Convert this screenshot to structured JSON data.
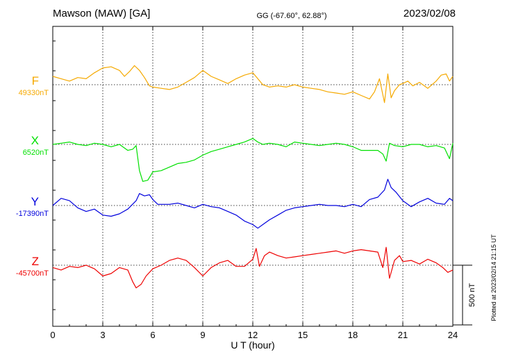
{
  "header": {
    "station": "Mawson (MAW)  [GA]",
    "coords": "GG (-67.60°,  62.88°)",
    "date": "2023/02/08"
  },
  "side_note": "Plotted at 2023/02/14 21:15 UT",
  "scale_label": "500 nT",
  "chart_data": {
    "type": "line",
    "title": "Mawson (MAW)  [GA]",
    "xlabel": "U T (hour)",
    "xlim": [
      0,
      24
    ],
    "xticks": [
      "0",
      "3",
      "6",
      "9",
      "12",
      "15",
      "18",
      "21",
      "24"
    ],
    "grid": true,
    "scale_bar_nT": 500,
    "series": [
      {
        "name": "F",
        "baseline_label": "49330nT",
        "baseline_nT": 49330,
        "color": "#f5a900",
        "x": [
          0,
          0.5,
          1,
          1.5,
          2,
          2.5,
          3,
          3.5,
          4,
          4.3,
          4.6,
          4.9,
          5.2,
          5.5,
          5.8,
          6,
          6.5,
          7,
          7.5,
          8,
          8.5,
          9,
          9.5,
          10,
          10.5,
          11,
          11.5,
          12,
          12.3,
          12.6,
          13,
          13.5,
          14,
          14.5,
          15,
          15.5,
          16,
          16.5,
          17,
          17.5,
          18,
          18.5,
          19,
          19.3,
          19.6,
          19.9,
          20.1,
          20.3,
          20.5,
          20.8,
          21,
          21.3,
          21.6,
          22,
          22.5,
          23,
          23.3,
          23.6,
          23.8,
          24
        ],
        "values": [
          49400,
          49380,
          49360,
          49390,
          49380,
          49430,
          49470,
          49480,
          49450,
          49400,
          49440,
          49490,
          49450,
          49390,
          49320,
          49310,
          49300,
          49290,
          49310,
          49350,
          49390,
          49450,
          49400,
          49370,
          49340,
          49380,
          49410,
          49430,
          49380,
          49330,
          49310,
          49320,
          49310,
          49330,
          49310,
          49300,
          49290,
          49270,
          49260,
          49250,
          49270,
          49240,
          49210,
          49270,
          49380,
          49180,
          49420,
          49220,
          49280,
          49330,
          49340,
          49360,
          49320,
          49350,
          49300,
          49360,
          49410,
          49420,
          49360,
          49400
        ]
      },
      {
        "name": "X",
        "baseline_label": "6520nT",
        "baseline_nT": 6520,
        "color": "#00e000",
        "x": [
          0,
          0.5,
          1,
          1.5,
          2,
          2.5,
          3,
          3.5,
          4,
          4.5,
          4.8,
          5,
          5.2,
          5.4,
          5.7,
          6,
          6.5,
          7,
          7.5,
          8,
          8.5,
          9,
          9.5,
          10,
          10.5,
          11,
          11.5,
          12,
          12.3,
          12.6,
          13,
          13.5,
          14,
          14.5,
          15,
          15.5,
          16,
          16.5,
          17,
          17.5,
          18,
          18.5,
          19,
          19.5,
          19.8,
          20,
          20.2,
          20.5,
          21,
          21.5,
          22,
          22.5,
          23,
          23.5,
          23.8,
          24
        ],
        "values": [
          6520,
          6530,
          6540,
          6520,
          6510,
          6530,
          6520,
          6500,
          6520,
          6470,
          6480,
          6510,
          6300,
          6210,
          6220,
          6290,
          6300,
          6330,
          6360,
          6370,
          6390,
          6430,
          6460,
          6480,
          6500,
          6520,
          6540,
          6570,
          6540,
          6520,
          6530,
          6520,
          6500,
          6540,
          6530,
          6520,
          6510,
          6520,
          6530,
          6520,
          6500,
          6470,
          6470,
          6470,
          6440,
          6380,
          6530,
          6510,
          6500,
          6520,
          6520,
          6500,
          6510,
          6490,
          6400,
          6530
        ]
      },
      {
        "name": "Y",
        "baseline_label": "-17390nT",
        "baseline_nT": -17390,
        "color": "#0000dd",
        "x": [
          0,
          0.5,
          1,
          1.5,
          2,
          2.5,
          3,
          3.5,
          4,
          4.5,
          5,
          5.2,
          5.5,
          5.8,
          6,
          6.3,
          6.5,
          7,
          7.5,
          8,
          8.5,
          9,
          9.5,
          10,
          10.5,
          11,
          11.5,
          12,
          12.3,
          12.6,
          13,
          13.5,
          14,
          14.5,
          15,
          15.5,
          16,
          16.5,
          17,
          17.5,
          18,
          18.5,
          19,
          19.5,
          19.9,
          20.1,
          20.3,
          20.6,
          21,
          21.5,
          22,
          22.5,
          23,
          23.5,
          23.8,
          24
        ],
        "values": [
          -17390,
          -17330,
          -17350,
          -17410,
          -17440,
          -17420,
          -17470,
          -17480,
          -17460,
          -17420,
          -17350,
          -17290,
          -17310,
          -17300,
          -17340,
          -17380,
          -17380,
          -17380,
          -17370,
          -17390,
          -17410,
          -17380,
          -17400,
          -17410,
          -17440,
          -17470,
          -17520,
          -17550,
          -17580,
          -17550,
          -17510,
          -17470,
          -17430,
          -17410,
          -17400,
          -17390,
          -17380,
          -17390,
          -17390,
          -17400,
          -17380,
          -17400,
          -17340,
          -17320,
          -17260,
          -17170,
          -17240,
          -17280,
          -17350,
          -17400,
          -17360,
          -17330,
          -17370,
          -17380,
          -17330,
          -17350
        ]
      },
      {
        "name": "Z",
        "baseline_label": "-45700nT",
        "baseline_nT": -45700,
        "color": "#ee0000",
        "x": [
          0,
          0.5,
          1,
          1.5,
          2,
          2.5,
          3,
          3.5,
          4,
          4.5,
          4.8,
          5,
          5.3,
          5.6,
          6,
          6.5,
          7,
          7.5,
          8,
          8.5,
          9,
          9.5,
          10,
          10.5,
          11,
          11.5,
          12,
          12.2,
          12.4,
          12.7,
          13,
          13.5,
          14,
          14.5,
          15,
          15.5,
          16,
          16.5,
          17,
          17.5,
          18,
          18.5,
          19,
          19.5,
          19.8,
          20,
          20.2,
          20.5,
          20.8,
          21,
          21.5,
          22,
          22.5,
          23,
          23.4,
          23.7,
          24
        ],
        "values": [
          -45720,
          -45740,
          -45710,
          -45720,
          -45700,
          -45730,
          -45790,
          -45770,
          -45720,
          -45740,
          -45840,
          -45890,
          -45860,
          -45790,
          -45730,
          -45700,
          -45660,
          -45640,
          -45660,
          -45720,
          -45790,
          -45720,
          -45680,
          -45660,
          -45710,
          -45710,
          -45650,
          -45560,
          -45710,
          -45620,
          -45590,
          -45620,
          -45640,
          -45630,
          -45620,
          -45610,
          -45600,
          -45590,
          -45580,
          -45600,
          -45580,
          -45570,
          -45580,
          -45590,
          -45720,
          -45550,
          -45810,
          -45660,
          -45620,
          -45670,
          -45660,
          -45690,
          -45650,
          -45680,
          -45720,
          -45760,
          -45740
        ]
      }
    ]
  }
}
